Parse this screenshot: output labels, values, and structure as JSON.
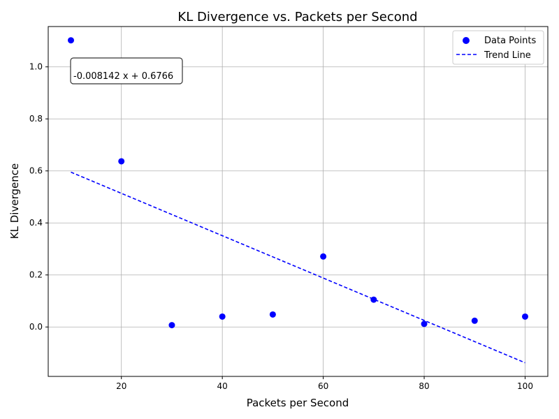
{
  "chart_data": {
    "type": "scatter",
    "title": "KL Divergence vs. Packets per Second",
    "xlabel": "Packets per Second",
    "ylabel": "KL Divergence",
    "xlim": [
      5.5,
      104.5
    ],
    "ylim": [
      -0.19,
      1.155
    ],
    "x_ticks": [
      20,
      40,
      60,
      80,
      100
    ],
    "y_ticks": [
      0.0,
      0.2,
      0.4,
      0.6,
      0.8,
      1.0
    ],
    "x_tick_labels": [
      "20",
      "40",
      "60",
      "80",
      "100"
    ],
    "y_tick_labels": [
      "0.0",
      "0.2",
      "0.4",
      "0.6",
      "0.8",
      "1.0"
    ],
    "grid": true,
    "legend_position": "top-right",
    "series": [
      {
        "name": "Data Points",
        "kind": "scatter",
        "color": "#0000ff",
        "x": [
          10,
          20,
          30,
          40,
          50,
          60,
          70,
          80,
          90,
          100
        ],
        "y": [
          1.102,
          0.637,
          0.007,
          0.04,
          0.048,
          0.271,
          0.105,
          0.012,
          0.024,
          0.04
        ]
      },
      {
        "name": "Trend Line",
        "kind": "line",
        "style": "dashed",
        "color": "#0000ff",
        "x": [
          10,
          100
        ],
        "y": [
          0.5952,
          -0.1376
        ]
      }
    ],
    "annotation": "-0.008142 x + 0.6766"
  }
}
